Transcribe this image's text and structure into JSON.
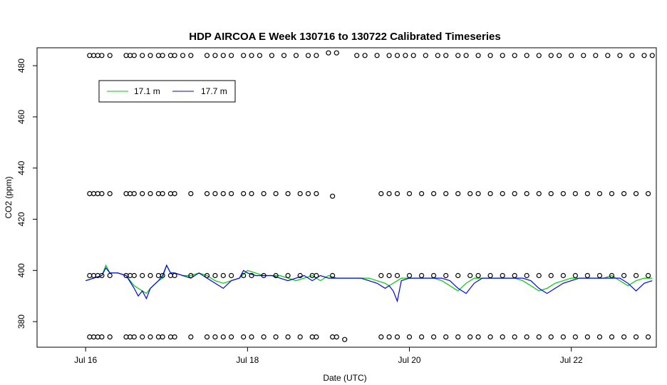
{
  "chart_data": {
    "type": "line",
    "title": "HDP AIRCOA E  Week 130716 to 130722  Calibrated Timeseries",
    "xlabel": "Date (UTC)",
    "ylabel": "CO2 (ppm)",
    "x_unit": "days since Jul 16 00:00 UTC",
    "xlim": [
      -0.6,
      7.05
    ],
    "ylim": [
      370,
      487
    ],
    "x_ticks": [
      {
        "value": 0,
        "label": "Jul 16"
      },
      {
        "value": 2,
        "label": "Jul 18"
      },
      {
        "value": 4,
        "label": "Jul 20"
      },
      {
        "value": 6,
        "label": "Jul 22"
      }
    ],
    "y_ticks": [
      {
        "value": 380,
        "label": "380"
      },
      {
        "value": 400,
        "label": "400"
      },
      {
        "value": 420,
        "label": "420"
      },
      {
        "value": 440,
        "label": "440"
      },
      {
        "value": 460,
        "label": "460"
      },
      {
        "value": 480,
        "label": "480"
      }
    ],
    "legend": {
      "position": "top-left",
      "entries": [
        "17.1 m",
        "17.7 m"
      ]
    },
    "series": [
      {
        "name": "17.1 m",
        "color": "#00cc00",
        "style": "line",
        "x": [
          0.0,
          0.1,
          0.2,
          0.25,
          0.3,
          0.4,
          0.5,
          0.6,
          0.7,
          0.75,
          0.8,
          0.9,
          0.95,
          1.0,
          1.05,
          1.1,
          1.2,
          1.3,
          1.4,
          1.5,
          1.6,
          1.7,
          1.8,
          1.9,
          2.0,
          2.1,
          2.2,
          2.3,
          2.4,
          2.5,
          2.6,
          2.7,
          2.8,
          2.9,
          3.0,
          3.1,
          3.2,
          3.3,
          3.4,
          3.5,
          3.6,
          3.7,
          3.75,
          3.8,
          3.9,
          4.0,
          4.1,
          4.2,
          4.3,
          4.4,
          4.5,
          4.6,
          4.7,
          4.8,
          4.9,
          5.0,
          5.1,
          5.2,
          5.3,
          5.4,
          5.5,
          5.6,
          5.7,
          5.8,
          5.9,
          6.0,
          6.1,
          6.2,
          6.3,
          6.4,
          6.5,
          6.6,
          6.7,
          6.8,
          6.9,
          7.0
        ],
        "y": [
          396,
          397,
          398,
          402,
          399,
          399,
          398,
          394,
          392,
          391,
          393,
          396,
          397,
          402,
          399,
          399,
          398,
          398,
          399,
          398,
          396,
          395,
          396,
          397,
          400,
          399,
          398,
          398,
          398,
          397,
          396,
          397,
          398,
          396,
          398,
          397,
          397,
          397,
          397,
          397,
          396,
          395,
          394,
          395,
          397,
          397,
          397,
          397,
          397,
          396,
          394,
          392,
          395,
          397,
          397,
          397,
          397,
          397,
          397,
          396,
          394,
          392,
          393,
          395,
          396,
          397,
          397,
          397,
          397,
          397,
          398,
          396,
          394,
          396,
          397,
          397
        ]
      },
      {
        "name": "17.7 m",
        "color": "#0000ff",
        "style": "line",
        "x": [
          0.0,
          0.1,
          0.2,
          0.25,
          0.3,
          0.4,
          0.5,
          0.6,
          0.65,
          0.7,
          0.75,
          0.8,
          0.9,
          0.95,
          1.0,
          1.05,
          1.1,
          1.2,
          1.3,
          1.4,
          1.5,
          1.6,
          1.7,
          1.8,
          1.9,
          1.95,
          2.0,
          2.1,
          2.2,
          2.3,
          2.4,
          2.5,
          2.6,
          2.7,
          2.8,
          2.9,
          3.0,
          3.1,
          3.2,
          3.3,
          3.4,
          3.5,
          3.6,
          3.7,
          3.75,
          3.8,
          3.85,
          3.9,
          4.0,
          4.1,
          4.2,
          4.3,
          4.4,
          4.5,
          4.6,
          4.7,
          4.8,
          4.9,
          5.0,
          5.1,
          5.2,
          5.3,
          5.4,
          5.5,
          5.6,
          5.7,
          5.8,
          5.9,
          6.0,
          6.1,
          6.2,
          6.3,
          6.4,
          6.5,
          6.6,
          6.7,
          6.8,
          6.9,
          7.0
        ],
        "y": [
          396,
          397,
          398,
          401,
          399,
          399,
          398,
          393,
          390,
          392,
          389,
          393,
          396,
          398,
          402,
          399,
          399,
          398,
          397,
          399,
          397,
          395,
          393,
          396,
          397,
          400,
          399,
          398,
          398,
          398,
          397,
          396,
          397,
          398,
          396,
          398,
          397,
          397,
          397,
          397,
          397,
          396,
          395,
          393,
          394,
          392,
          388,
          396,
          397,
          397,
          397,
          397,
          397,
          396,
          393,
          391,
          395,
          397,
          397,
          397,
          397,
          397,
          397,
          396,
          393,
          391,
          393,
          395,
          396,
          397,
          397,
          397,
          397,
          397,
          397,
          395,
          392,
          395,
          396
        ]
      },
      {
        "name": "",
        "color": "#000000",
        "style": "points",
        "x": [
          0.05,
          0.1,
          0.15,
          0.2,
          0.3,
          0.5,
          0.55,
          0.6,
          0.7,
          0.8,
          0.9,
          0.95,
          1.05,
          1.1,
          1.2,
          1.3,
          1.5,
          1.6,
          1.7,
          1.8,
          1.95,
          2.05,
          2.15,
          2.3,
          2.45,
          2.6,
          2.75,
          2.85,
          3.0,
          3.1,
          3.35,
          3.45,
          3.6,
          3.75,
          3.85,
          3.95,
          4.05,
          4.2,
          4.35,
          4.45,
          4.6,
          4.7,
          4.85,
          5.0,
          5.15,
          5.3,
          5.45,
          5.6,
          5.75,
          5.85,
          6.0,
          6.15,
          6.3,
          6.45,
          6.6,
          6.75,
          6.9,
          7.0,
          0.05,
          0.1,
          0.15,
          0.2,
          0.3,
          0.5,
          0.55,
          0.6,
          0.7,
          0.8,
          0.9,
          0.95,
          1.05,
          1.1,
          1.3,
          1.5,
          1.6,
          1.7,
          1.8,
          1.95,
          2.05,
          2.2,
          2.35,
          2.5,
          2.65,
          2.75,
          2.85,
          3.05,
          3.65,
          3.75,
          3.85,
          4.0,
          4.15,
          4.3,
          4.45,
          4.6,
          4.75,
          4.85,
          5.0,
          5.15,
          5.3,
          5.45,
          5.6,
          5.75,
          5.9,
          6.05,
          6.2,
          6.35,
          6.5,
          6.65,
          6.8,
          6.95,
          0.05,
          0.1,
          0.15,
          0.2,
          0.3,
          0.5,
          0.55,
          0.6,
          0.7,
          0.8,
          0.9,
          0.95,
          1.05,
          1.1,
          1.3,
          1.5,
          1.6,
          1.7,
          1.8,
          1.95,
          2.05,
          2.2,
          2.35,
          2.5,
          2.65,
          2.8,
          2.85,
          3.05,
          3.65,
          3.75,
          3.85,
          4.0,
          4.15,
          4.3,
          4.45,
          4.6,
          4.75,
          4.85,
          5.0,
          5.15,
          5.3,
          5.45,
          5.6,
          5.75,
          5.9,
          6.05,
          6.2,
          6.35,
          6.5,
          6.65,
          6.8,
          6.95,
          0.05,
          0.1,
          0.15,
          0.2,
          0.3,
          0.5,
          0.55,
          0.6,
          0.7,
          0.8,
          0.9,
          0.95,
          1.05,
          1.1,
          1.3,
          1.5,
          1.6,
          1.7,
          1.8,
          1.95,
          2.05,
          2.2,
          2.35,
          2.5,
          2.65,
          2.8,
          2.85,
          3.05,
          3.1,
          3.2,
          3.65,
          3.75,
          3.85,
          4.0,
          4.15,
          4.3,
          4.45,
          4.6,
          4.75,
          4.85,
          5.0,
          5.15,
          5.3,
          5.45,
          5.6,
          5.75,
          5.9,
          6.05,
          6.2,
          6.35,
          6.5,
          6.65,
          6.8,
          6.95
        ],
        "y": [
          484,
          484,
          484,
          484,
          484,
          484,
          484,
          484,
          484,
          484,
          484,
          484,
          484,
          484,
          484,
          484,
          484,
          484,
          484,
          484,
          484,
          484,
          484,
          484,
          484,
          484,
          484,
          484,
          485,
          485,
          484,
          484,
          484,
          484,
          484,
          484,
          484,
          484,
          484,
          484,
          484,
          484,
          484,
          484,
          484,
          484,
          484,
          484,
          484,
          484,
          484,
          484,
          484,
          484,
          484,
          484,
          484,
          484,
          430,
          430,
          430,
          430,
          430,
          430,
          430,
          430,
          430,
          430,
          430,
          430,
          430,
          430,
          430,
          430,
          430,
          430,
          430,
          430,
          430,
          430,
          430,
          430,
          430,
          430,
          430,
          429,
          430,
          430,
          430,
          430,
          430,
          430,
          430,
          430,
          430,
          430,
          430,
          430,
          430,
          430,
          430,
          430,
          430,
          430,
          430,
          430,
          430,
          430,
          430,
          430,
          398,
          398,
          398,
          398,
          398,
          398,
          398,
          398,
          398,
          398,
          398,
          398,
          398,
          398,
          398,
          398,
          398,
          398,
          398,
          398,
          398,
          398,
          398,
          398,
          398,
          398,
          398,
          398,
          398,
          398,
          398,
          398,
          398,
          398,
          398,
          398,
          398,
          398,
          398,
          398,
          398,
          398,
          398,
          398,
          398,
          398,
          398,
          398,
          398,
          398,
          398,
          398,
          374,
          374,
          374,
          374,
          374,
          374,
          374,
          374,
          374,
          374,
          374,
          374,
          374,
          374,
          374,
          374,
          374,
          374,
          374,
          374,
          374,
          374,
          374,
          374,
          374,
          374,
          374,
          374,
          374,
          373,
          374,
          374,
          374,
          374,
          374,
          374,
          374,
          374,
          374,
          374,
          374,
          374,
          374,
          374,
          374,
          374,
          374,
          374,
          374,
          374,
          374,
          374,
          374,
          374
        ]
      }
    ]
  }
}
